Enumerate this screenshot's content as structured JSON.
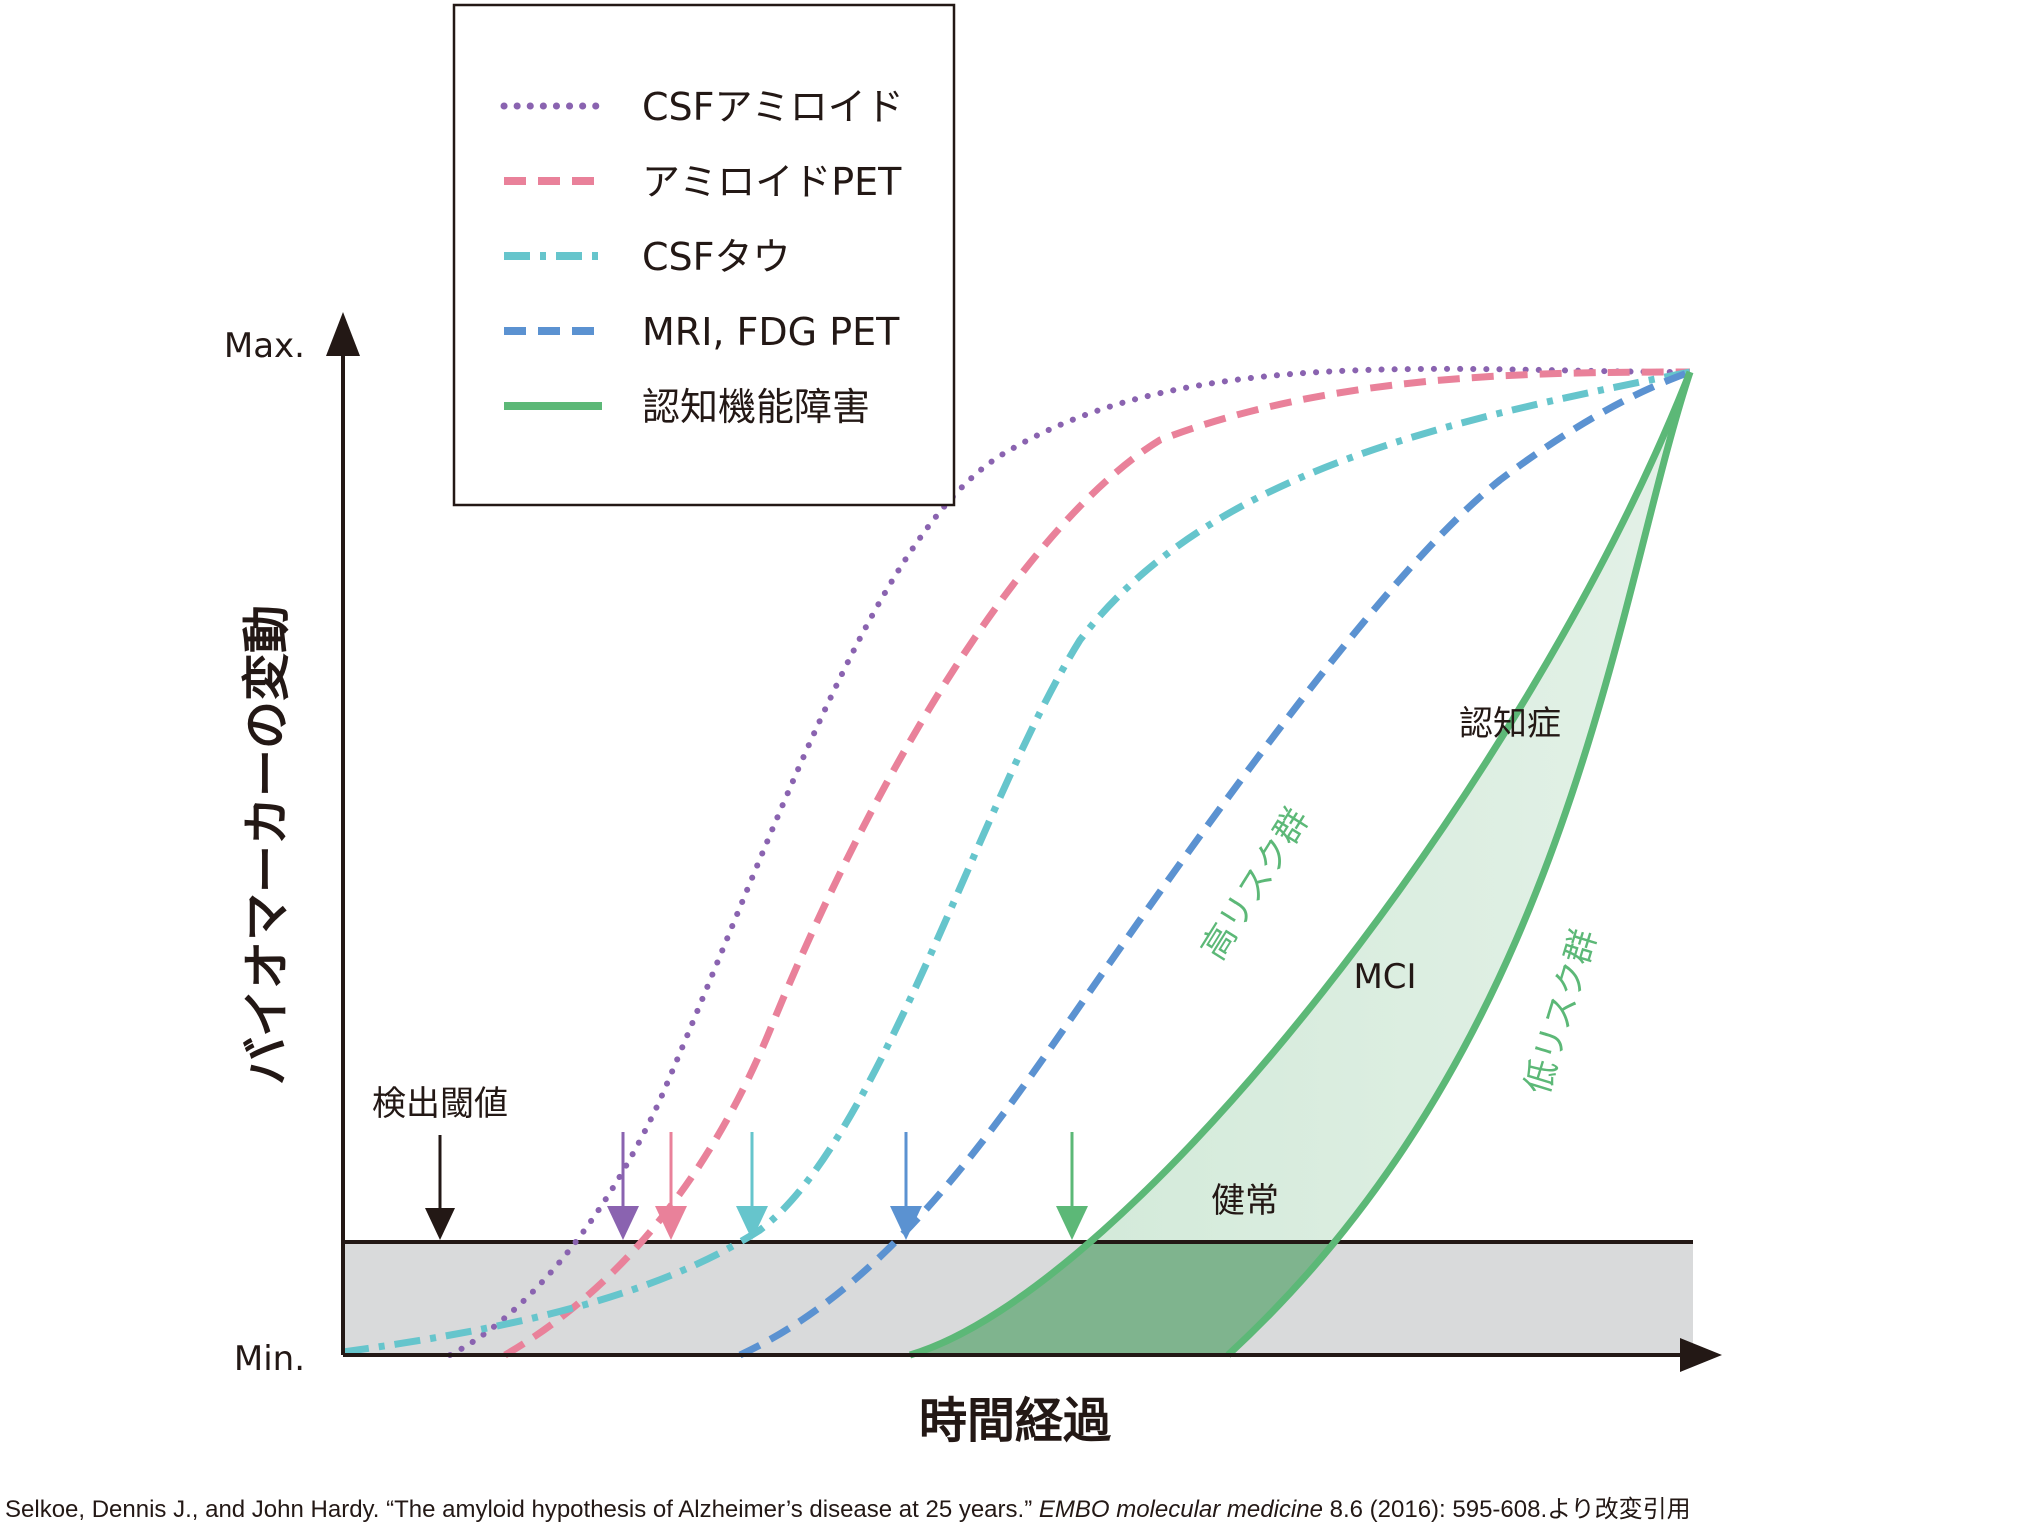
{
  "axes": {
    "y_title": "バイオマーカーの変動",
    "x_title": "時間経過",
    "y_max_label": "Max.",
    "y_min_label": "Min."
  },
  "threshold": {
    "label": "検出閾値"
  },
  "legend": [
    {
      "label": "CSFアミロイド",
      "style": "dotted",
      "color": "#8a63b0"
    },
    {
      "label": "アミロイドPET",
      "style": "dashed",
      "color": "#e9819a"
    },
    {
      "label": "CSFタウ",
      "style": "dash-dot",
      "color": "#66c5cc"
    },
    {
      "label": "MRI, FDG PET",
      "style": "dashed",
      "color": "#5b92d1"
    },
    {
      "label": "認知機能障害",
      "style": "solid",
      "color": "#5cb877"
    }
  ],
  "regions": {
    "dementia": "認知症",
    "mci": "MCI",
    "normal": "健常",
    "high_risk": "高リスク群",
    "low_risk": "低リスク群"
  },
  "citation": {
    "authors": "Selkoe, Dennis J., and John Hardy. “The amyloid hypothesis of Alzheimer’s disease at 25 years.” ",
    "journal": "EMBO molecular medicine",
    "details": " 8.6 (2016): 595-608.より改変引用"
  },
  "colors": {
    "axis": "#231815",
    "threshold_band": "#d9dadb",
    "green_fill": "#cfe8d6",
    "green_dark_fill": "#7fb48e"
  }
}
